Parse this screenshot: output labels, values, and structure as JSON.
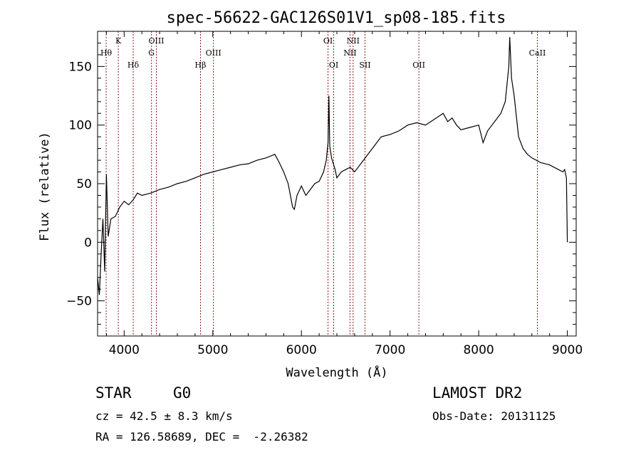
{
  "chart_data": {
    "type": "line",
    "title": "spec-56622-GAC126S01V1_sp08-185.fits",
    "xlabel": "Wavelength (Å)",
    "ylabel": "Flux (relative)",
    "xlim": [
      3700,
      9100
    ],
    "ylim": [
      -80,
      180
    ],
    "xticks": [
      4000,
      5000,
      6000,
      7000,
      8000,
      9000
    ],
    "yticks": [
      -50,
      0,
      50,
      100,
      150
    ],
    "grid": false,
    "series": [
      {
        "x": [
          3700,
          3720,
          3740,
          3760,
          3780,
          3800,
          3820,
          3850,
          3900,
          3950,
          4000,
          4050,
          4100,
          4150,
          4200,
          4300,
          4400,
          4500,
          4600,
          4700,
          4800,
          4900,
          5000,
          5100,
          5200,
          5300,
          5400,
          5500,
          5600,
          5700,
          5750,
          5800,
          5850,
          5900,
          5920,
          5950,
          6000,
          6050,
          6100,
          6150,
          6200,
          6250,
          6280,
          6300,
          6310,
          6320,
          6340,
          6380,
          6400,
          6450,
          6500,
          6550,
          6600,
          6650,
          6700,
          6750,
          6800,
          6850,
          6900,
          7000,
          7100,
          7200,
          7300,
          7400,
          7500,
          7600,
          7650,
          7700,
          7750,
          7800,
          7900,
          8000,
          8050,
          8100,
          8150,
          8200,
          8250,
          8300,
          8320,
          8340,
          8350,
          8370,
          8400,
          8450,
          8500,
          8550,
          8600,
          8700,
          8800,
          8900,
          8950,
          8970,
          8990,
          9000
        ],
        "y": [
          -30,
          -45,
          -10,
          20,
          -25,
          58,
          5,
          20,
          22,
          30,
          35,
          32,
          36,
          42,
          40,
          42,
          45,
          47,
          50,
          52,
          55,
          58,
          60,
          62,
          64,
          66,
          67,
          70,
          72,
          75,
          68,
          60,
          50,
          30,
          28,
          40,
          48,
          40,
          45,
          50,
          52,
          60,
          70,
          85,
          125,
          82,
          72,
          62,
          55,
          60,
          62,
          64,
          60,
          65,
          70,
          75,
          80,
          85,
          90,
          92,
          95,
          100,
          102,
          100,
          105,
          110,
          103,
          106,
          100,
          96,
          98,
          100,
          85,
          95,
          100,
          105,
          110,
          120,
          135,
          150,
          175,
          140,
          125,
          90,
          80,
          75,
          72,
          68,
          66,
          62,
          60,
          62,
          55,
          0
        ]
      }
    ],
    "annotations": [
      {
        "label": "Hθ",
        "x": 3797,
        "row": 2
      },
      {
        "label": "K",
        "x": 3934,
        "row": 1
      },
      {
        "label": "Hδ",
        "x": 4102,
        "row": 3
      },
      {
        "label": "G",
        "x": 4308,
        "row": 2
      },
      {
        "label": "OIII",
        "x": 4363,
        "row": 1
      },
      {
        "label": "Hβ",
        "x": 4861,
        "row": 3
      },
      {
        "label": "OIII",
        "x": 5007,
        "row": 2
      },
      {
        "label": "OI",
        "x": 6300,
        "row": 1
      },
      {
        "label": "OI",
        "x": 6364,
        "row": 3
      },
      {
        "label": "NII",
        "x": 6548,
        "row": 2
      },
      {
        "label": "NII",
        "x": 6583,
        "row": 1
      },
      {
        "label": "SII",
        "x": 6717,
        "row": 3
      },
      {
        "label": "OII",
        "x": 7325,
        "row": 3
      },
      {
        "label": "CaII",
        "x": 8662,
        "row": 2
      }
    ]
  },
  "info": {
    "class": "STAR",
    "subclass": "G0",
    "survey": "LAMOST DR2",
    "cz": "cz = 42.5 ± 8.3 km/s",
    "obsdate": "Obs-Date: 20131125",
    "radec": "RA = 126.58689, DEC =  -2.26382"
  },
  "colors": {
    "line": "#000000",
    "marker": "#8b1a1a",
    "background": "#ffffff"
  }
}
